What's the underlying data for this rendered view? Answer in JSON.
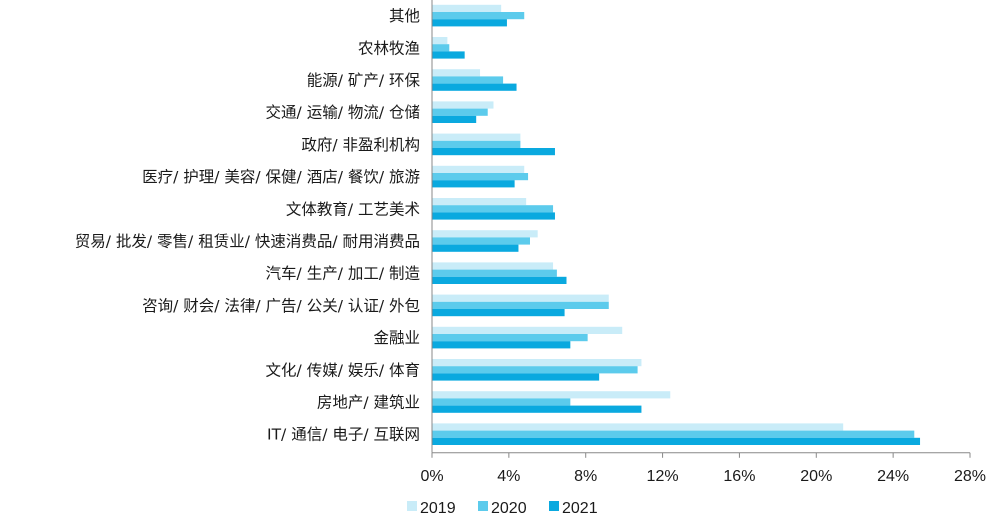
{
  "chart_data": {
    "type": "bar",
    "orientation": "horizontal",
    "categories": [
      "其他",
      "农林牧渔",
      "能源/ 矿产/ 环保",
      "交通/ 运输/ 物流/ 仓储",
      "政府/ 非盈利机构",
      "医疗/ 护理/ 美容/ 保健/ 酒店/ 餐饮/ 旅游",
      "文体教育/ 工艺美术",
      "贸易/ 批发/ 零售/ 租赁业/ 快速消费品/ 耐用消费品",
      "汽车/ 生产/ 加工/ 制造",
      "咨询/ 财会/ 法律/ 广告/ 公关/ 认证/ 外包",
      "金融业",
      "文化/ 传媒/ 娱乐/ 体育",
      "房地产/ 建筑业",
      "IT/ 通信/ 电子/ 互联网"
    ],
    "series": [
      {
        "name": "2019",
        "color": "#c9ecf8",
        "values": [
          3.6,
          0.8,
          2.5,
          3.2,
          4.6,
          4.8,
          4.9,
          5.5,
          6.3,
          9.2,
          9.9,
          10.9,
          12.4,
          21.4
        ]
      },
      {
        "name": "2020",
        "color": "#5ccbec",
        "values": [
          4.8,
          0.9,
          3.7,
          2.9,
          4.6,
          5.0,
          6.3,
          5.1,
          6.5,
          9.2,
          8.1,
          10.7,
          7.2,
          25.1
        ]
      },
      {
        "name": "2021",
        "color": "#0aa9df",
        "values": [
          3.9,
          1.7,
          4.4,
          2.3,
          6.4,
          4.3,
          6.4,
          4.5,
          7.0,
          6.9,
          7.2,
          8.7,
          10.9,
          25.4
        ]
      }
    ],
    "xlim": [
      0,
      28
    ],
    "xticks": [
      "0%",
      "4%",
      "8%",
      "12%",
      "16%",
      "20%",
      "24%",
      "28%"
    ],
    "grid": false,
    "legend_position": "bottom-left"
  }
}
